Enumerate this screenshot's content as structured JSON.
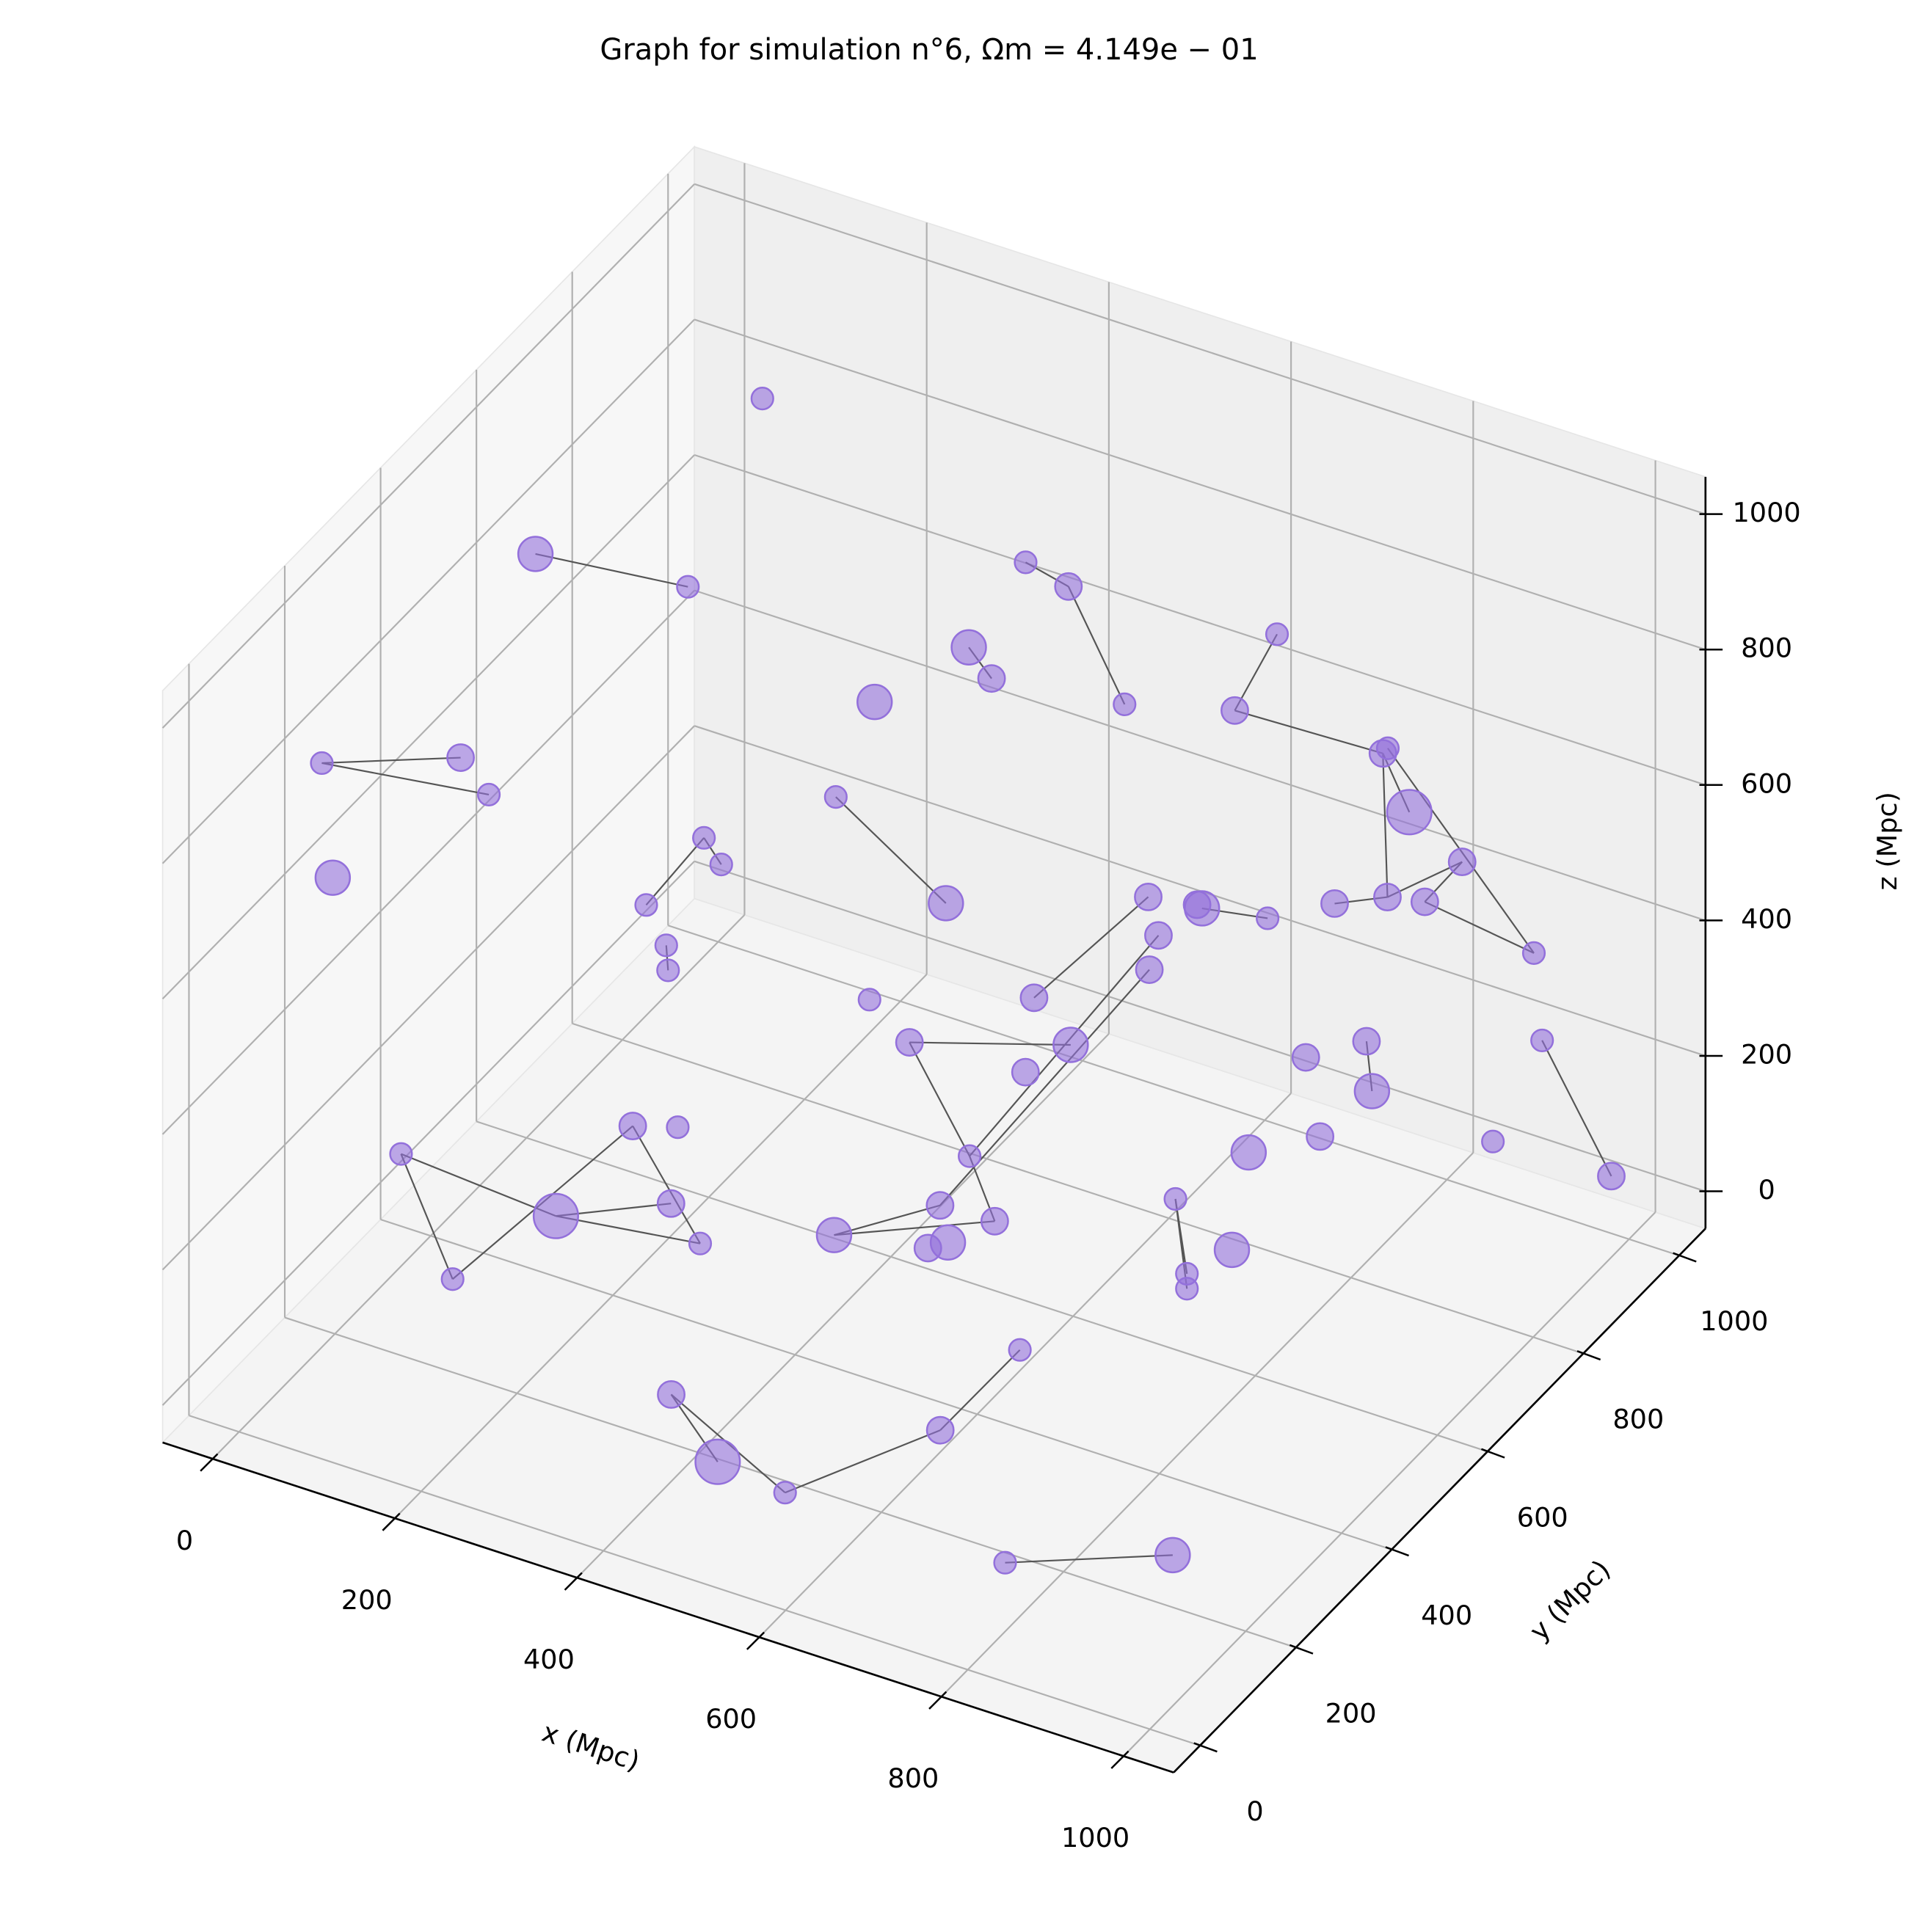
{
  "chart_data": {
    "type": "scatter3d",
    "title": "Graph for simulation n°6, Ωm = 4.149e − 01",
    "xlabel": "x (Mpc)",
    "ylabel": "y (Mpc)",
    "zlabel": "z (Mpc)",
    "xlim": [
      -55,
      1055
    ],
    "ylim": [
      -55,
      1055
    ],
    "zlim": [
      -55,
      1055
    ],
    "xticks": [
      0,
      200,
      400,
      600,
      800,
      1000
    ],
    "yticks": [
      0,
      200,
      400,
      600,
      800,
      1000
    ],
    "zticks": [
      0,
      200,
      400,
      600,
      800,
      1000
    ],
    "grid": true,
    "color": "#9370db",
    "edge_color": "#555555",
    "x": [
      78,
      4,
      113,
      3,
      97,
      128,
      15,
      189,
      208,
      184,
      206,
      208,
      217,
      513,
      367,
      414,
      534,
      363,
      388,
      318,
      643,
      655,
      823,
      876,
      905,
      963,
      881,
      922,
      823,
      925,
      560,
      619,
      672,
      691,
      688,
      678,
      493,
      254,
      473,
      650,
      542,
      733,
      858,
      864,
      934,
      1010,
      880,
      807,
      787,
      765,
      827,
      836,
      836,
      539,
      565,
      625,
      632,
      610,
      507,
      286,
      277,
      90,
      260,
      328,
      360,
      205,
      711,
      682,
      445,
      496,
      570,
      841,
      1025
    ],
    "y": [
      944,
      611,
      722,
      167,
      278,
      278,
      167,
      611,
      611,
      500,
      500,
      500,
      833,
      500,
      944,
      944,
      833,
      833,
      833,
      722,
      944,
      833,
      833,
      722,
      722,
      722,
      722,
      722,
      722,
      944,
      833,
      833,
      722,
      833,
      611,
      611,
      722,
      833,
      500,
      500,
      611,
      833,
      722,
      722,
      944,
      944,
      944,
      722,
      611,
      500,
      500,
      389,
      389,
      500,
      389,
      389,
      278,
      278,
      278,
      278,
      389,
      167,
      167,
      278,
      278,
      56,
      278,
      167,
      56,
      56,
      56,
      0,
      0
    ],
    "z": [
      822,
      801,
      720,
      813,
      782,
      741,
      649,
      463,
      432,
      442,
      392,
      356,
      375,
      589,
      707,
      692,
      651,
      660,
      625,
      640,
      722,
      695,
      713,
      809,
      735,
      687,
      599,
      610,
      564,
      375,
      378,
      387,
      496,
      404,
      538,
      483,
      280,
      92,
      366,
      440,
      272,
      217,
      376,
      305,
      250,
      83,
      77,
      213,
      261,
      263,
      215,
      264,
      242,
      227,
      246,
      249,
      301,
      283,
      257,
      321,
      235,
      274,
      257,
      225,
      180,
      220,
      177,
      126,
      155,
      78,
      65,
      121,
      213
    ],
    "sizes": [
      60,
      150,
      60,
      60,
      90,
      60,
      150,
      60,
      60,
      60,
      60,
      60,
      60,
      150,
      60,
      90,
      60,
      150,
      90,
      150,
      60,
      90,
      60,
      90,
      250,
      90,
      90,
      90,
      90,
      60,
      90,
      150,
      90,
      60,
      90,
      90,
      90,
      60,
      90,
      150,
      90,
      90,
      90,
      150,
      60,
      90,
      60,
      90,
      150,
      60,
      150,
      60,
      60,
      60,
      90,
      90,
      150,
      90,
      150,
      90,
      60,
      60,
      250,
      90,
      60,
      60,
      60,
      90,
      90,
      250,
      60,
      60,
      150
    ],
    "edges": [
      [
        1,
        2
      ],
      [
        3,
        4
      ],
      [
        3,
        5
      ],
      [
        7,
        9
      ],
      [
        7,
        8
      ],
      [
        10,
        11
      ],
      [
        12,
        13
      ],
      [
        14,
        15
      ],
      [
        15,
        16
      ],
      [
        17,
        18
      ],
      [
        20,
        21
      ],
      [
        21,
        23
      ],
      [
        23,
        24
      ],
      [
        22,
        29
      ],
      [
        23,
        26
      ],
      [
        26,
        25
      ],
      [
        25,
        27
      ],
      [
        27,
        29
      ],
      [
        28,
        26
      ],
      [
        31,
        33
      ],
      [
        30,
        36
      ],
      [
        34,
        53
      ],
      [
        35,
        54
      ],
      [
        38,
        39
      ],
      [
        38,
        53
      ],
      [
        53,
        55
      ],
      [
        54,
        58
      ],
      [
        55,
        58
      ],
      [
        42,
        43
      ],
      [
        44,
        45
      ],
      [
        49,
        51
      ],
      [
        49,
        52
      ],
      [
        61,
        65
      ],
      [
        61,
        62
      ],
      [
        65,
        59
      ],
      [
        62,
        63
      ],
      [
        59,
        64
      ],
      [
        62,
        64
      ],
      [
        66,
        67
      ],
      [
        67,
        70
      ],
      [
        68,
        70
      ],
      [
        68,
        69
      ],
      [
        71,
        72
      ]
    ]
  }
}
